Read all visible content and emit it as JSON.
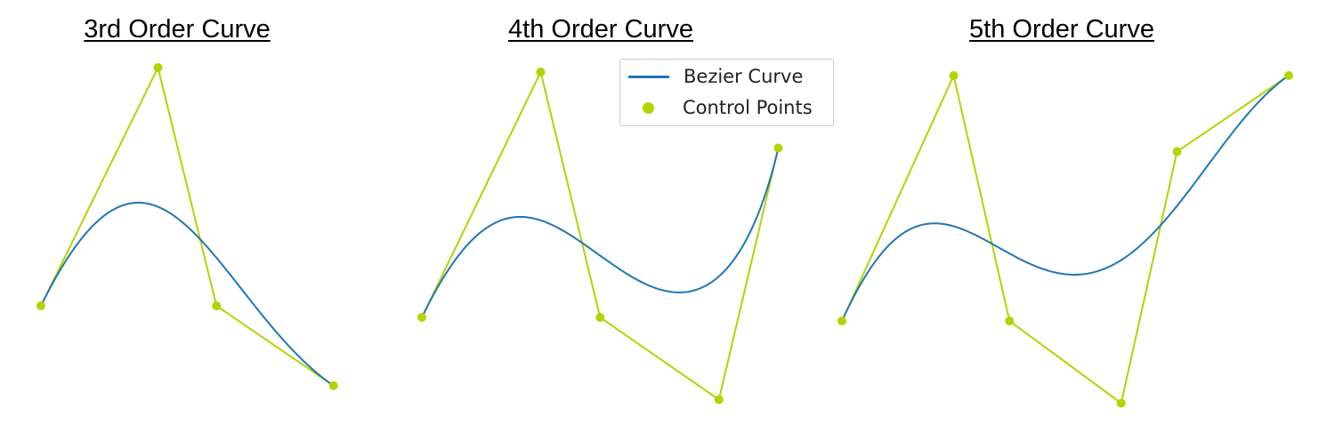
{
  "colors": {
    "curve": "#1f77b4",
    "control": "#b4d400"
  },
  "legend": {
    "curve_label": "Bezier Curve",
    "control_label": "Control Points"
  },
  "charts": [
    {
      "title": "3rd Order Curve",
      "control_points": [
        [
          0,
          0
        ],
        [
          1,
          2
        ],
        [
          1.5,
          0
        ],
        [
          2.5,
          -0.67
        ]
      ]
    },
    {
      "title": "4th Order Curve",
      "control_points": [
        [
          0,
          0
        ],
        [
          1,
          2
        ],
        [
          1.5,
          0
        ],
        [
          2.5,
          -0.67
        ],
        [
          3,
          1.38
        ]
      ]
    },
    {
      "title": "5th Order Curve",
      "control_points": [
        [
          0,
          0
        ],
        [
          1,
          2
        ],
        [
          1.5,
          0
        ],
        [
          2.5,
          -0.67
        ],
        [
          3,
          1.38
        ],
        [
          4,
          2
        ]
      ]
    }
  ]
}
